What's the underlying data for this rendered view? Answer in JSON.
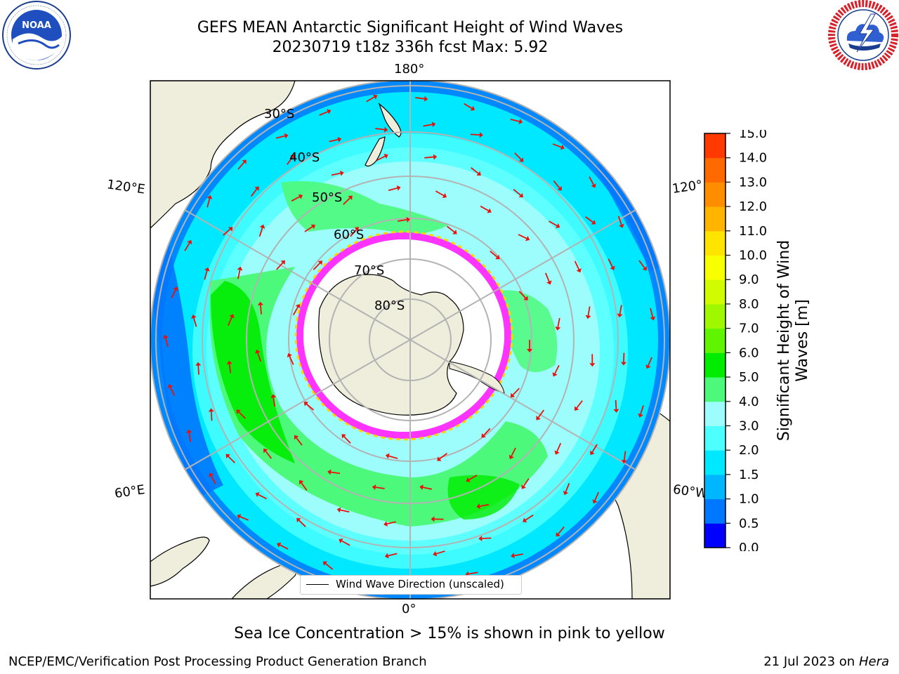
{
  "title_line1": "GEFS MEAN Antarctic Significant Height of Wind Waves",
  "title_line2": "20230719 t18z 336h fcst   Max: 5.92",
  "logos": {
    "noaa": {
      "text": "NOAA",
      "ring_text": "NATIONAL OCEANIC AND ATMOSPHERIC ADMINISTRATION · U.S. DEPARTMENT OF COMMERCE"
    },
    "nws": {
      "ring_text": "NATIONAL WEATHER SERVICE"
    }
  },
  "map": {
    "projection": "south polar stereographic",
    "meridian_labels": {
      "top": "180°",
      "bottom": "0°",
      "upper_left": "120°E",
      "lower_left": "60°E",
      "upper_right": "120°",
      "lower_right": "60°W"
    },
    "latitude_labels": [
      "30°S",
      "40°S",
      "50°S",
      "60°S",
      "70°S",
      "80°S"
    ]
  },
  "colorbar": {
    "title": "Significant Height of Wind Waves [m]",
    "ticks": [
      "0.0",
      "0.5",
      "1.0",
      "1.5",
      "2.0",
      "3.0",
      "4.0",
      "5.0",
      "6.0",
      "7.0",
      "8.0",
      "9.0",
      "10.0",
      "11.0",
      "12.0",
      "13.0",
      "14.0",
      "15.0"
    ],
    "colors": [
      "#0000ff",
      "#0077ff",
      "#00b7ff",
      "#00e8ff",
      "#4dffff",
      "#9dfdfc",
      "#4df97a",
      "#00ec00",
      "#60f400",
      "#a0f800",
      "#d0fb00",
      "#f7ff00",
      "#ffe400",
      "#ffb400",
      "#ff8d00",
      "#ff6a00",
      "#ff3a00"
    ]
  },
  "legend_label": "Wind Wave Direction (unscaled)",
  "sea_ice_note": "Sea Ice Concentration > 15% is shown in pink to yellow",
  "footer_left": "NCEP/EMC/Verification Post Processing Product Generation Branch",
  "footer_date": "21 Jul 2023 on ",
  "footer_machine": "Hera",
  "colors": {
    "land": "#efeddb",
    "ocean_background": "#00e8ff",
    "grid": "#b3b3b3",
    "arrow": "#e8120c",
    "sea_ice_pink": "#ff33ff",
    "sea_ice_yellow": "#ffd400"
  }
}
